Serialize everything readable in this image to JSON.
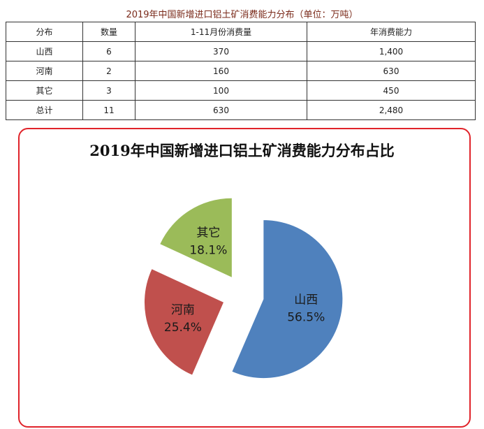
{
  "table": {
    "title": "2019年中国新增进口铝土矿消费能力分布（单位：万吨）",
    "headers": [
      "分布",
      "数量",
      "1-11月份消费量",
      "年消费能力"
    ],
    "rows": [
      [
        "山西",
        "6",
        "370",
        "1,400"
      ],
      [
        "河南",
        "2",
        "160",
        "630"
      ],
      [
        "其它",
        "3",
        "100",
        "450"
      ],
      [
        "总计",
        "11",
        "630",
        "2,480"
      ]
    ]
  },
  "chart_data": {
    "type": "pie",
    "title": "2019年中国新增进口铝土矿消费能力分布占比",
    "exploded": true,
    "slices": [
      {
        "label": "山西",
        "value": 56.5,
        "display": "56.5%",
        "color": "#4f81bd"
      },
      {
        "label": "河南",
        "value": 25.4,
        "display": "25.4%",
        "color": "#c0504d"
      },
      {
        "label": "其它",
        "value": 18.1,
        "display": "18.1%",
        "color": "#9bbb59"
      }
    ],
    "border_color": "#e0232a"
  }
}
